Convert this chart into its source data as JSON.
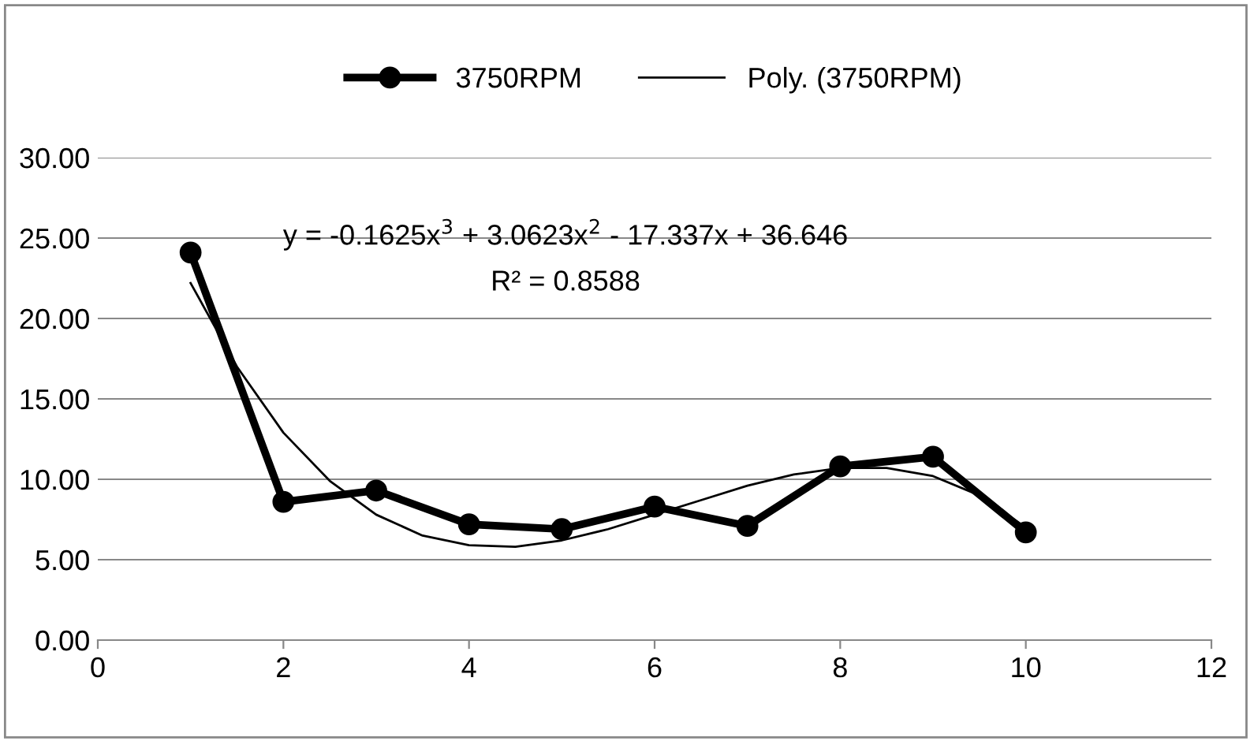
{
  "chart_data": {
    "type": "line",
    "series": [
      {
        "name": "3750RPM",
        "color": "#000000",
        "marker": "circle",
        "x": [
          1,
          2,
          3,
          4,
          5,
          6,
          7,
          8,
          9,
          10
        ],
        "values": [
          24.1,
          8.6,
          9.3,
          7.2,
          6.9,
          8.3,
          7.1,
          10.8,
          11.4,
          6.7
        ]
      },
      {
        "name": "Poly. (3750RPM)",
        "color": "#000000",
        "marker": "none",
        "x": [
          1,
          1.5,
          2,
          2.5,
          3,
          3.5,
          4,
          4.5,
          5,
          5.5,
          6,
          6.5,
          7,
          7.5,
          8,
          8.5,
          9,
          9.5,
          10
        ],
        "values": [
          22.2,
          17.0,
          12.9,
          9.9,
          7.8,
          6.5,
          5.9,
          5.8,
          6.2,
          6.9,
          7.8,
          8.7,
          9.6,
          10.3,
          10.7,
          10.7,
          10.2,
          9.0,
          7.0
        ]
      }
    ],
    "annotations": [
      "y = -0.1625x$^{3}$ + 3.0623x$^{2}$ - 17.337x + 36.646",
      "R² = 0.8588"
    ],
    "xlim": [
      0,
      12
    ],
    "xticks": [
      0,
      2,
      4,
      6,
      8,
      10,
      12
    ],
    "ylim": [
      0,
      30
    ],
    "yticks": [
      {
        "value": 0,
        "label": "0.00"
      },
      {
        "value": 5,
        "label": "5.00"
      },
      {
        "value": 10,
        "label": "10.00"
      },
      {
        "value": 15,
        "label": "15.00"
      },
      {
        "value": 20,
        "label": "20.00"
      },
      {
        "value": 25,
        "label": "25.00"
      },
      {
        "value": 30,
        "label": "30.00"
      }
    ],
    "grid": "y",
    "legend": "top",
    "line_style": "solid"
  }
}
